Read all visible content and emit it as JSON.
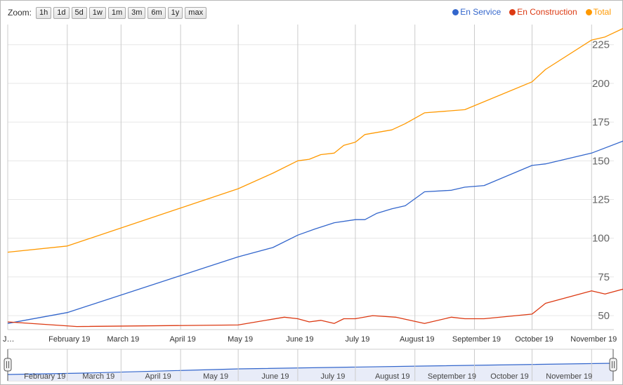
{
  "zoom": {
    "label": "Zoom:",
    "buttons": [
      "1h",
      "1d",
      "5d",
      "1w",
      "1m",
      "3m",
      "6m",
      "1y",
      "max"
    ]
  },
  "legend": [
    {
      "name": "En Service",
      "color": "#3366cc"
    },
    {
      "name": "En Construction",
      "color": "#dc3912"
    },
    {
      "name": "Total",
      "color": "#ff9900"
    }
  ],
  "chart_data": {
    "type": "line",
    "title": "",
    "xlabel": "",
    "ylabel": "",
    "ylim": [
      41,
      238
    ],
    "yticks": [
      50,
      75,
      100,
      125,
      150,
      175,
      200,
      225
    ],
    "grid": true,
    "legend_position": "top-right",
    "x_tick_labels": [
      "J…",
      "February 19",
      "March 19",
      "April 19",
      "May 19",
      "June 19",
      "July 19",
      "August 19",
      "September 19",
      "October 19",
      "November 19"
    ],
    "series": [
      {
        "name": "En Service",
        "color": "#3366cc",
        "points": [
          [
            "2019-01-01",
            45
          ],
          [
            "2019-02-01",
            52
          ],
          [
            "2019-05-01",
            88
          ],
          [
            "2019-05-19",
            94
          ],
          [
            "2019-06-01",
            102
          ],
          [
            "2019-06-10",
            106
          ],
          [
            "2019-06-20",
            110
          ],
          [
            "2019-07-01",
            112
          ],
          [
            "2019-07-06",
            112
          ],
          [
            "2019-07-12",
            116
          ],
          [
            "2019-07-20",
            119
          ],
          [
            "2019-07-27",
            121
          ],
          [
            "2019-08-06",
            130
          ],
          [
            "2019-08-20",
            131
          ],
          [
            "2019-08-27",
            133
          ],
          [
            "2019-09-06",
            134
          ],
          [
            "2019-10-01",
            147
          ],
          [
            "2019-10-08",
            148
          ],
          [
            "2019-11-01",
            155
          ],
          [
            "2019-11-20",
            164
          ]
        ]
      },
      {
        "name": "En Construction",
        "color": "#dc3912",
        "points": [
          [
            "2019-01-01",
            46
          ],
          [
            "2019-02-06",
            43
          ],
          [
            "2019-05-01",
            44
          ],
          [
            "2019-05-25",
            49
          ],
          [
            "2019-06-01",
            48
          ],
          [
            "2019-06-07",
            46
          ],
          [
            "2019-06-13",
            47
          ],
          [
            "2019-06-20",
            45
          ],
          [
            "2019-06-25",
            48
          ],
          [
            "2019-07-01",
            48
          ],
          [
            "2019-07-10",
            50
          ],
          [
            "2019-07-22",
            49
          ],
          [
            "2019-08-06",
            45
          ],
          [
            "2019-08-20",
            49
          ],
          [
            "2019-08-27",
            48
          ],
          [
            "2019-09-06",
            48
          ],
          [
            "2019-10-01",
            51
          ],
          [
            "2019-10-08",
            58
          ],
          [
            "2019-11-01",
            66
          ],
          [
            "2019-11-08",
            64
          ],
          [
            "2019-11-20",
            68
          ]
        ]
      },
      {
        "name": "Total",
        "color": "#ff9900",
        "points": [
          [
            "2019-01-01",
            91
          ],
          [
            "2019-02-01",
            95
          ],
          [
            "2019-05-01",
            132
          ],
          [
            "2019-05-19",
            142
          ],
          [
            "2019-06-01",
            150
          ],
          [
            "2019-06-07",
            151
          ],
          [
            "2019-06-13",
            154
          ],
          [
            "2019-06-20",
            155
          ],
          [
            "2019-06-25",
            160
          ],
          [
            "2019-07-01",
            162
          ],
          [
            "2019-07-06",
            167
          ],
          [
            "2019-07-20",
            170
          ],
          [
            "2019-07-27",
            174
          ],
          [
            "2019-08-06",
            181
          ],
          [
            "2019-08-27",
            183
          ],
          [
            "2019-10-01",
            201
          ],
          [
            "2019-10-08",
            209
          ],
          [
            "2019-11-01",
            228
          ],
          [
            "2019-11-08",
            230
          ],
          [
            "2019-11-20",
            237
          ]
        ]
      }
    ]
  },
  "navigator": {
    "labels": [
      "February 19",
      "March 19",
      "April 19",
      "May 19",
      "June 19",
      "July 19",
      "August 19",
      "September 19",
      "October 19",
      "November 19"
    ],
    "line_color": "#3366cc",
    "fill_color": "#e8ecf8"
  }
}
